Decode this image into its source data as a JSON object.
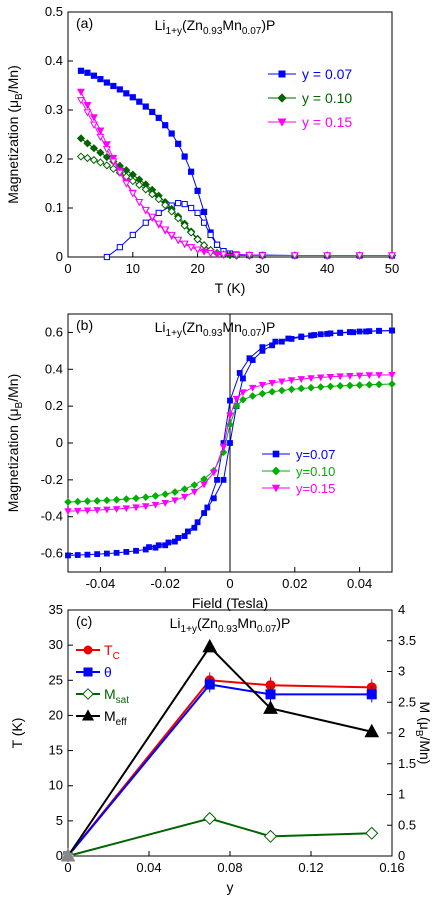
{
  "chart_data": [
    {
      "type": "scatter",
      "panel_label": "(a)",
      "title": "Li1+y(Zn0.93Mn0.07)P",
      "xlabel": "T (K)",
      "ylabel": "Magnetization (μB/Mn)",
      "xlim": [
        0,
        50
      ],
      "ylim": [
        0,
        0.5
      ],
      "xticks": [
        0,
        10,
        20,
        30,
        40,
        50
      ],
      "yticks": [
        0,
        0.1,
        0.2,
        0.3,
        0.4,
        0.5
      ],
      "legend_position": "right",
      "series": [
        {
          "name": "y = 0.07",
          "color": "#0000ff",
          "marker": "square",
          "filled": true,
          "x": [
            2,
            3,
            4,
            5,
            6,
            7,
            8,
            9,
            10,
            11,
            12,
            13,
            14,
            15,
            16,
            17,
            18,
            19,
            20,
            21,
            22,
            23,
            24,
            25,
            26,
            28,
            30,
            35,
            40,
            45,
            50
          ],
          "y": [
            0.38,
            0.376,
            0.37,
            0.363,
            0.356,
            0.349,
            0.342,
            0.334,
            0.326,
            0.317,
            0.307,
            0.296,
            0.284,
            0.269,
            0.252,
            0.231,
            0.205,
            0.174,
            0.135,
            0.092,
            0.05,
            0.025,
            0.012,
            0.007,
            0.005,
            0.004,
            0.004,
            0.003,
            0.003,
            0.003,
            0.003
          ]
        },
        {
          "name": "y = 0.07 ZFC",
          "color": "#0000ff",
          "marker": "square",
          "filled": false,
          "x": [
            6,
            8,
            10,
            12,
            14,
            16,
            17,
            18,
            19,
            20,
            21,
            22,
            23,
            24,
            25,
            26,
            28,
            30
          ],
          "y": [
            0.0,
            0.02,
            0.045,
            0.07,
            0.09,
            0.105,
            0.11,
            0.108,
            0.1,
            0.09,
            0.07,
            0.045,
            0.025,
            0.012,
            0.007,
            0.005,
            0.004,
            0.004
          ]
        },
        {
          "name": "y = 0.10",
          "color": "#006400",
          "marker": "diamond",
          "filled": true,
          "x": [
            2,
            3,
            4,
            5,
            6,
            7,
            8,
            9,
            10,
            11,
            12,
            13,
            14,
            15,
            16,
            17,
            18,
            19,
            20,
            21,
            22,
            23,
            24,
            25,
            26,
            28,
            30,
            35,
            40,
            45,
            50
          ],
          "y": [
            0.242,
            0.232,
            0.222,
            0.213,
            0.204,
            0.195,
            0.186,
            0.177,
            0.168,
            0.158,
            0.148,
            0.137,
            0.125,
            0.112,
            0.098,
            0.083,
            0.068,
            0.052,
            0.037,
            0.024,
            0.014,
            0.008,
            0.005,
            0.004,
            0.003,
            0.003,
            0.003,
            0.003,
            0.003,
            0.003,
            0.003
          ]
        },
        {
          "name": "y = 0.10 ZFC",
          "color": "#006400",
          "marker": "diamond",
          "filled": false,
          "x": [
            2,
            3,
            4,
            5,
            6,
            7,
            8,
            9,
            10,
            11,
            12,
            13,
            14,
            15,
            16,
            17,
            18,
            19,
            20,
            21,
            22,
            23,
            24,
            26,
            28,
            30,
            35,
            40,
            45,
            50
          ],
          "y": [
            0.205,
            0.202,
            0.198,
            0.193,
            0.187,
            0.18,
            0.172,
            0.164,
            0.155,
            0.147,
            0.138,
            0.128,
            0.118,
            0.106,
            0.093,
            0.079,
            0.064,
            0.05,
            0.036,
            0.024,
            0.014,
            0.008,
            0.005,
            0.003,
            0.003,
            0.003,
            0.003,
            0.003,
            0.003,
            0.003
          ]
        },
        {
          "name": "y = 0.15",
          "color": "#ff00ff",
          "marker": "triangle-down",
          "filled": true,
          "x": [
            2,
            3,
            4,
            5,
            6,
            7,
            8,
            9,
            10,
            11,
            12,
            13,
            14,
            15,
            16,
            17,
            18,
            19,
            20,
            21,
            22,
            23,
            24,
            26,
            28,
            30,
            35,
            40,
            45,
            50
          ],
          "y": [
            0.337,
            0.31,
            0.285,
            0.258,
            0.23,
            0.202,
            0.176,
            0.153,
            0.131,
            0.112,
            0.095,
            0.08,
            0.066,
            0.054,
            0.043,
            0.034,
            0.026,
            0.02,
            0.015,
            0.011,
            0.008,
            0.006,
            0.005,
            0.004,
            0.004,
            0.003,
            0.003,
            0.003,
            0.003,
            0.003
          ]
        },
        {
          "name": "y = 0.15 ZFC",
          "color": "#ff00ff",
          "marker": "triangle-down",
          "filled": false,
          "x": [
            2,
            3,
            4,
            5,
            6,
            7,
            8,
            9,
            10,
            11,
            12,
            13,
            14,
            15,
            16,
            17,
            18,
            19,
            20,
            22,
            24,
            26,
            28,
            30,
            35,
            40,
            45,
            50
          ],
          "y": [
            0.32,
            0.295,
            0.27,
            0.245,
            0.22,
            0.195,
            0.172,
            0.15,
            0.13,
            0.112,
            0.096,
            0.082,
            0.068,
            0.056,
            0.045,
            0.035,
            0.027,
            0.02,
            0.015,
            0.008,
            0.005,
            0.004,
            0.004,
            0.003,
            0.003,
            0.003,
            0.003,
            0.003
          ]
        }
      ],
      "legend": [
        {
          "label": "y = 0.07",
          "color": "#0000ff",
          "marker": "square"
        },
        {
          "label": "y = 0.10",
          "color": "#006400",
          "marker": "diamond"
        },
        {
          "label": "y = 0.15",
          "color": "#ff00ff",
          "marker": "triangle-down"
        }
      ]
    },
    {
      "type": "scatter",
      "panel_label": "(b)",
      "title": "Li1+y(Zn0.93Mn0.07)P",
      "xlabel": "Field (Tesla)",
      "ylabel": "Magnetization (μB/Mn)",
      "xlim": [
        -0.05,
        0.05
      ],
      "ylim": [
        -0.7,
        0.7
      ],
      "xticks": [
        -0.04,
        -0.02,
        0,
        0.02,
        0.04
      ],
      "yticks": [
        -0.6,
        -0.4,
        -0.2,
        0,
        0.2,
        0.4,
        0.6
      ],
      "legend_position": "bottom-right",
      "series": [
        {
          "name": "y=0.07",
          "color": "#0000ff",
          "marker": "square",
          "x": [
            -0.05,
            -0.047,
            -0.044,
            -0.041,
            -0.038,
            -0.035,
            -0.032,
            -0.029,
            -0.026,
            -0.023,
            -0.02,
            -0.017,
            -0.014,
            -0.011,
            -0.008,
            -0.005,
            -0.002,
            0,
            0.002,
            0.004,
            0.007,
            0.01,
            0.013,
            0.016,
            0.019,
            0.022,
            0.025,
            0.028,
            0.031,
            0.034,
            0.037,
            0.04,
            0.043,
            0.046,
            0.05
          ],
          "y": [
            -0.61,
            -0.608,
            -0.606,
            -0.603,
            -0.6,
            -0.596,
            -0.591,
            -0.585,
            -0.578,
            -0.568,
            -0.555,
            -0.535,
            -0.505,
            -0.46,
            -0.38,
            -0.3,
            -0.2,
            0.0,
            0.2,
            0.35,
            0.45,
            0.5,
            0.53,
            0.55,
            0.565,
            0.575,
            0.583,
            0.59,
            0.595,
            0.599,
            0.602,
            0.605,
            0.607,
            0.609,
            0.61
          ]
        },
        {
          "name": "y=0.07 return",
          "color": "#0000ff",
          "marker": "square",
          "x": [
            0.05,
            0.046,
            0.042,
            0.038,
            0.034,
            0.03,
            0.026,
            0.022,
            0.018,
            0.014,
            0.01,
            0.006,
            0.003,
            0,
            -0.002,
            -0.004,
            -0.007,
            -0.01,
            -0.013,
            -0.016,
            -0.019,
            -0.022,
            -0.025
          ],
          "y": [
            0.61,
            0.608,
            0.605,
            0.601,
            0.597,
            0.592,
            0.586,
            0.578,
            0.567,
            0.55,
            0.52,
            0.46,
            0.38,
            0.23,
            0.0,
            -0.2,
            -0.35,
            -0.43,
            -0.48,
            -0.515,
            -0.54,
            -0.555,
            -0.565
          ]
        },
        {
          "name": "y=0.10",
          "color": "#00b000",
          "marker": "diamond",
          "x": [
            -0.05,
            -0.047,
            -0.044,
            -0.041,
            -0.038,
            -0.035,
            -0.032,
            -0.029,
            -0.026,
            -0.023,
            -0.02,
            -0.017,
            -0.014,
            -0.011,
            -0.008,
            -0.005,
            -0.002,
            0,
            0.002,
            0.004,
            0.007,
            0.01,
            0.013,
            0.016,
            0.019,
            0.022,
            0.025,
            0.028,
            0.031,
            0.034,
            0.037,
            0.04,
            0.043,
            0.046,
            0.05
          ],
          "y": [
            -0.32,
            -0.318,
            -0.316,
            -0.314,
            -0.311,
            -0.308,
            -0.304,
            -0.3,
            -0.294,
            -0.287,
            -0.278,
            -0.266,
            -0.25,
            -0.228,
            -0.196,
            -0.15,
            -0.05,
            0.1,
            0.2,
            0.235,
            0.255,
            0.268,
            0.278,
            0.285,
            0.291,
            0.296,
            0.3,
            0.304,
            0.307,
            0.31,
            0.312,
            0.314,
            0.316,
            0.318,
            0.32
          ]
        },
        {
          "name": "y=0.15",
          "color": "#ff00ff",
          "marker": "triangle-down",
          "x": [
            -0.05,
            -0.047,
            -0.044,
            -0.041,
            -0.038,
            -0.035,
            -0.032,
            -0.029,
            -0.026,
            -0.023,
            -0.02,
            -0.017,
            -0.014,
            -0.011,
            -0.008,
            -0.005,
            -0.002,
            0,
            0.002,
            0.004,
            0.007,
            0.01,
            0.013,
            0.016,
            0.019,
            0.022,
            0.025,
            0.028,
            0.031,
            0.034,
            0.037,
            0.04,
            0.043,
            0.046,
            0.05
          ],
          "y": [
            -0.37,
            -0.368,
            -0.366,
            -0.364,
            -0.361,
            -0.358,
            -0.354,
            -0.349,
            -0.343,
            -0.335,
            -0.325,
            -0.311,
            -0.292,
            -0.265,
            -0.225,
            -0.16,
            -0.02,
            0.15,
            0.24,
            0.275,
            0.3,
            0.315,
            0.326,
            0.334,
            0.341,
            0.347,
            0.352,
            0.356,
            0.359,
            0.362,
            0.364,
            0.366,
            0.368,
            0.369,
            0.37
          ]
        }
      ],
      "legend": [
        {
          "label": "y=0.07",
          "color": "#0000ff",
          "marker": "square"
        },
        {
          "label": "y=0.10",
          "color": "#00b000",
          "marker": "diamond"
        },
        {
          "label": "y=0.15",
          "color": "#ff00ff",
          "marker": "triangle-down"
        }
      ]
    },
    {
      "type": "line",
      "panel_label": "(c)",
      "title": "Li1+y(Zn0.93Mn0.07)P",
      "xlabel": "y",
      "ylabel": "T (K)",
      "ylabel_right": "M (μB/Mn)",
      "xlim": [
        0,
        0.16
      ],
      "ylim": [
        0,
        35
      ],
      "ylim_right": [
        0,
        4
      ],
      "xticks": [
        0,
        0.04,
        0.08,
        0.12,
        0.16
      ],
      "yticks": [
        0,
        5,
        10,
        15,
        20,
        25,
        30,
        35
      ],
      "yticks_right": [
        0,
        0.5,
        1,
        1.5,
        2,
        2.5,
        3,
        3.5,
        4
      ],
      "legend_position": "top-left",
      "series": [
        {
          "name": "TC",
          "color": "#ee0000",
          "marker": "circle",
          "axis": "left",
          "x": [
            0,
            0.07,
            0.1,
            0.15
          ],
          "y": [
            0,
            25.0,
            24.3,
            24.0
          ]
        },
        {
          "name": "θ",
          "color": "#0000ff",
          "marker": "square",
          "axis": "left",
          "x": [
            0,
            0.07,
            0.1,
            0.15
          ],
          "y": [
            0,
            24.4,
            23.0,
            23.0
          ]
        },
        {
          "name": "Msat",
          "color": "#006400",
          "marker": "diamond-open",
          "axis": "right",
          "x": [
            0,
            0.07,
            0.1,
            0.15
          ],
          "y": [
            0,
            0.61,
            0.32,
            0.37
          ]
        },
        {
          "name": "Meff",
          "color": "#000000",
          "marker": "triangle",
          "axis": "right",
          "x": [
            0,
            0.07,
            0.1,
            0.15
          ],
          "y": [
            0,
            3.4,
            2.4,
            2.02
          ]
        }
      ],
      "legend": [
        {
          "label": "T",
          "sub": "C",
          "color": "#ee0000",
          "marker": "circle"
        },
        {
          "label": "θ",
          "sub": "",
          "color": "#0000ff",
          "marker": "square"
        },
        {
          "label": "M",
          "sub": "sat",
          "color": "#006400",
          "marker": "diamond-open"
        },
        {
          "label": "M",
          "sub": "eff",
          "color": "#000000",
          "marker": "triangle"
        }
      ]
    }
  ]
}
